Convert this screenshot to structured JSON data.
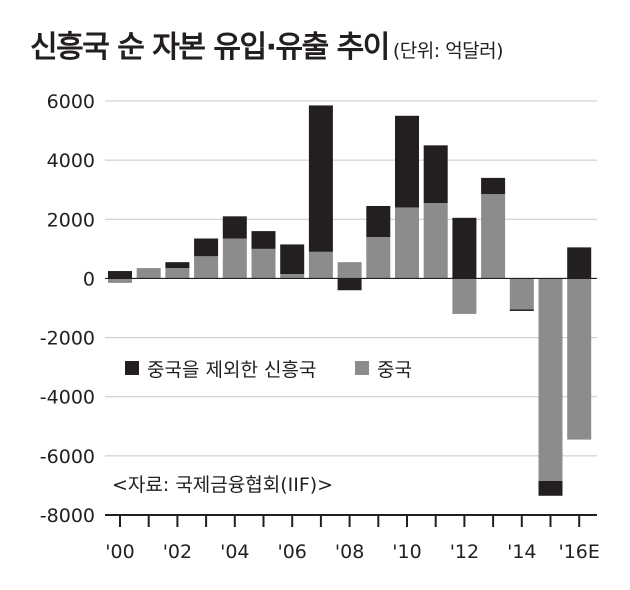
{
  "chart_data": {
    "type": "bar",
    "stacked": true,
    "title": "신흥국 순 자본 유입·유출 추이",
    "unit": "(단위: 억달러)",
    "categories": [
      "2000",
      "2001",
      "2002",
      "2003",
      "2004",
      "2005",
      "2006",
      "2007",
      "2008",
      "2009",
      "2010",
      "2011",
      "2012",
      "2013",
      "2014",
      "2015",
      "2016E"
    ],
    "x_tick_labels": [
      "'00",
      "'02",
      "'04",
      "'06",
      "'08",
      "'10",
      "'12",
      "'14",
      "'16E"
    ],
    "ylim": [
      -8000,
      6000
    ],
    "y_ticks": [
      6000,
      4000,
      2000,
      0,
      -2000,
      -4000,
      -6000,
      -8000
    ],
    "grid": true,
    "series": [
      {
        "name": "중국",
        "color": "#8c8c8c",
        "values": [
          -150,
          350,
          350,
          750,
          1350,
          1000,
          150,
          900,
          550,
          1400,
          2400,
          2550,
          -1200,
          2850,
          -1050,
          -6850,
          -5450
        ]
      },
      {
        "name": "중국을 제외한 신흥국",
        "color": "#231f20",
        "values": [
          250,
          0,
          200,
          600,
          750,
          600,
          1000,
          4950,
          -400,
          1050,
          3100,
          1950,
          2050,
          550,
          -50,
          -500,
          1050
        ]
      }
    ],
    "legend": [
      "중국을 제외한 신흥국",
      "중국"
    ],
    "legend_position": "lower-left",
    "source": "<자료: 국제금융협회(IIF)>"
  }
}
